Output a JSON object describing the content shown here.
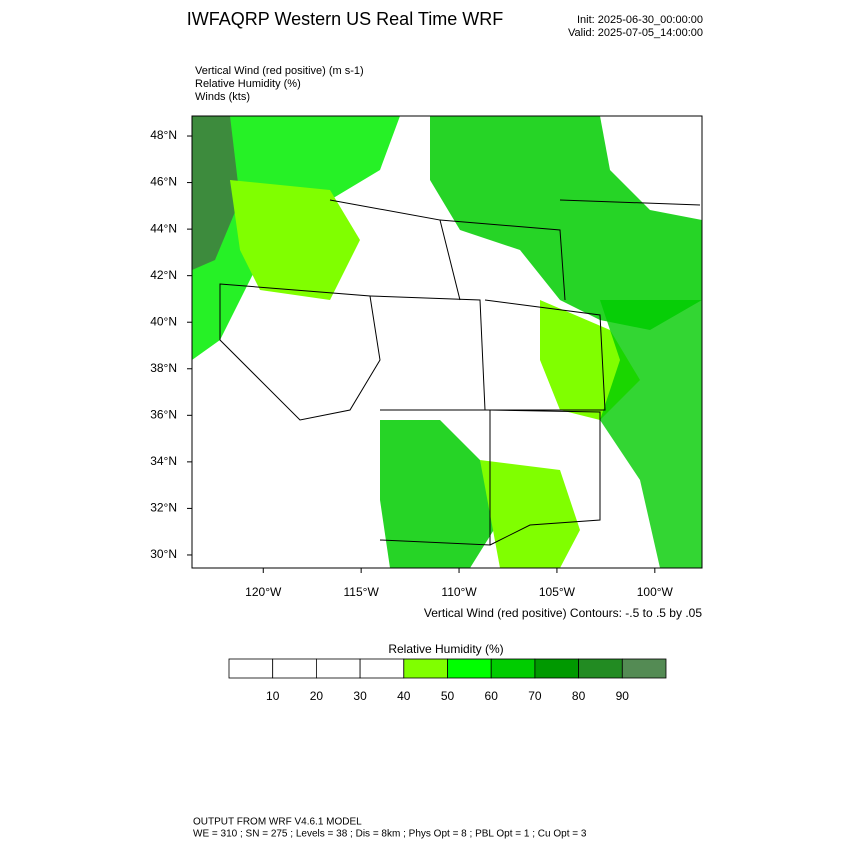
{
  "header": {
    "title": "IWFAQRP Western US Real Time WRF",
    "init": "Init: 2025-06-30_00:00:00",
    "valid": "Valid: 2025-07-05_14:00:00"
  },
  "fields": [
    "Vertical Wind (red positive)   (m s-1)",
    "Relative Humidity   (%)",
    "Winds   (kts)"
  ],
  "map": {
    "lon_lim": [
      -123.64,
      -97.59
    ],
    "lat_lim": [
      29.44,
      48.86
    ],
    "lat_ticks": [
      {
        "value": 30,
        "label": "30°N"
      },
      {
        "value": 32,
        "label": "32°N"
      },
      {
        "value": 34,
        "label": "34°N"
      },
      {
        "value": 36,
        "label": "36°N"
      },
      {
        "value": 38,
        "label": "38°N"
      },
      {
        "value": 40,
        "label": "40°N"
      },
      {
        "value": 42,
        "label": "42°N"
      },
      {
        "value": 44,
        "label": "44°N"
      },
      {
        "value": 46,
        "label": "46°N"
      },
      {
        "value": 48,
        "label": "48°N"
      }
    ],
    "lon_ticks": [
      {
        "value": -120,
        "label": "120°W"
      },
      {
        "value": -115,
        "label": "115°W"
      },
      {
        "value": -110,
        "label": "110°W"
      },
      {
        "value": -105,
        "label": "105°W"
      },
      {
        "value": -100,
        "label": "100°W"
      }
    ],
    "contour_note": "Vertical Wind (red positive) Contours: -.5 to .5 by .05"
  },
  "colorbar": {
    "title": "Relative Humidity   (%)",
    "colors": [
      "#ffffff",
      "#ffffff",
      "#ffffff",
      "#ffffff",
      "#80ff00",
      "#00ff00",
      "#00cc00",
      "#009900",
      "#228b22",
      "#548b54"
    ],
    "ticks": [
      10,
      20,
      30,
      40,
      50,
      60,
      70,
      80,
      90
    ]
  },
  "footer": {
    "line1": "OUTPUT FROM WRF V4.6.1 MODEL",
    "line2": "WE = 310 ; SN = 275 ; Levels = 38 ; Dis = 8km ; Phys Opt = 8 ; PBL Opt = 1 ; Cu Opt = 3"
  }
}
